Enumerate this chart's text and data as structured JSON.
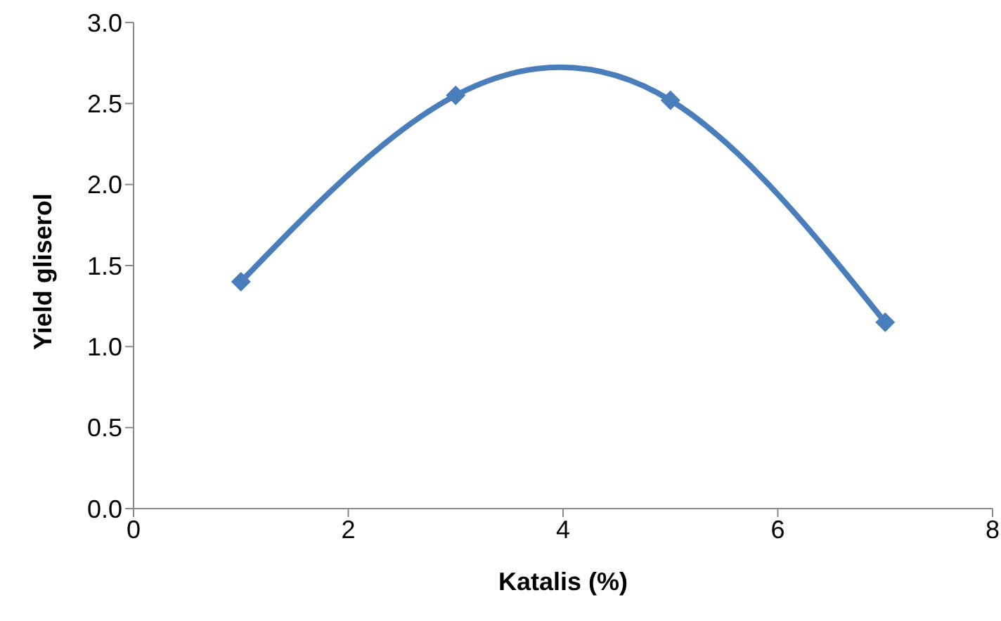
{
  "chart_data": {
    "type": "line",
    "xlabel": "Katalis (%)",
    "ylabel": "Yield gliserol",
    "x": [
      1,
      3,
      5,
      7
    ],
    "series": [
      {
        "color": "#4a7ebb",
        "values": [
          1.4,
          2.55,
          2.52,
          1.15
        ]
      }
    ],
    "xlim": [
      0,
      8
    ],
    "xticks": [
      0,
      2,
      4,
      6,
      8
    ],
    "ylim": [
      0,
      3
    ],
    "yticks": [
      {
        "value": 0,
        "label": "0.0"
      },
      {
        "value": 0.5,
        "label": "0.5"
      },
      {
        "value": 1,
        "label": "1.0"
      },
      {
        "value": 1.5,
        "label": "1.5"
      },
      {
        "value": 2,
        "label": "2.0"
      },
      {
        "value": 2.5,
        "label": "2.5"
      },
      {
        "value": 3,
        "label": "3.0"
      }
    ],
    "marker": "diamond",
    "line_style": "solid",
    "grid": false,
    "legend": false
  }
}
